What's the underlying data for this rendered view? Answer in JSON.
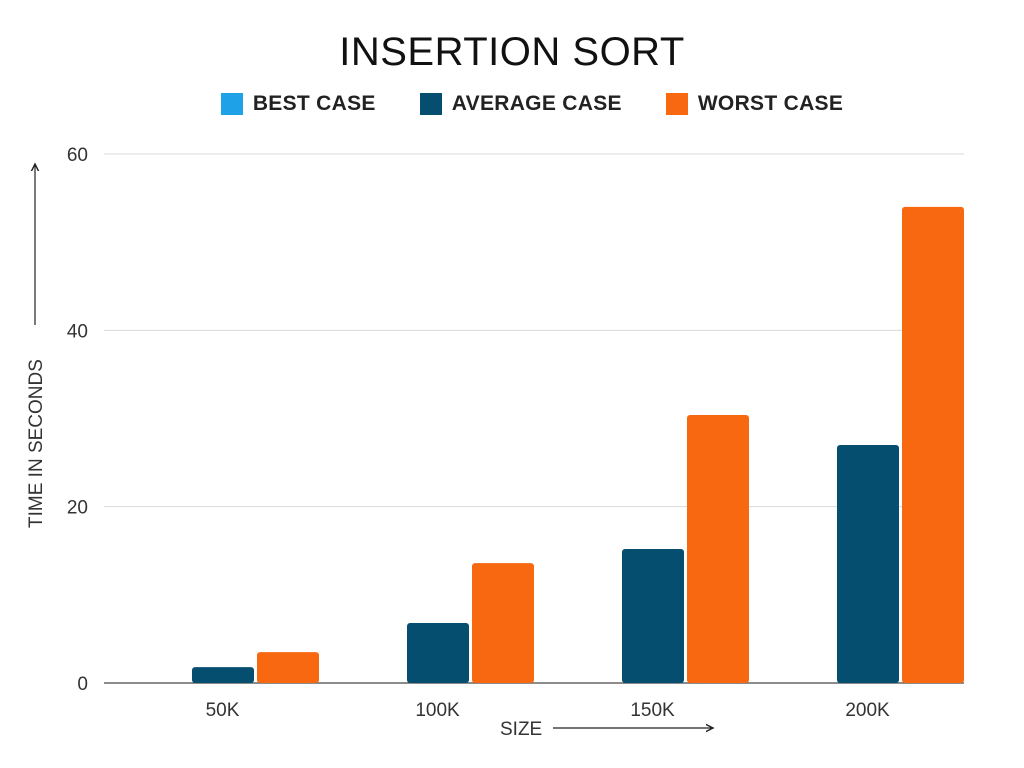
{
  "chart_data": {
    "type": "bar",
    "title": "INSERTION SORT",
    "categories": [
      "50K",
      "100K",
      "150K",
      "200K"
    ],
    "series": [
      {
        "name": "BEST CASE",
        "color": "#1ea1e6",
        "values": [
          0,
          0,
          0,
          0
        ]
      },
      {
        "name": "AVERAGE CASE",
        "color": "#054e70",
        "values": [
          1.8,
          6.8,
          15.2,
          27.0
        ]
      },
      {
        "name": "WORST CASE",
        "color": "#f76810",
        "values": [
          3.5,
          13.6,
          30.4,
          54.0
        ]
      }
    ],
    "xlabel": "SIZE",
    "ylabel": "TIME IN SECONDS",
    "ylim": [
      0,
      60
    ],
    "yticks": [
      "0",
      "20",
      "40",
      "60"
    ],
    "ytick_values": [
      0,
      20,
      40,
      60
    ],
    "grid": true,
    "legend_position": "top"
  }
}
